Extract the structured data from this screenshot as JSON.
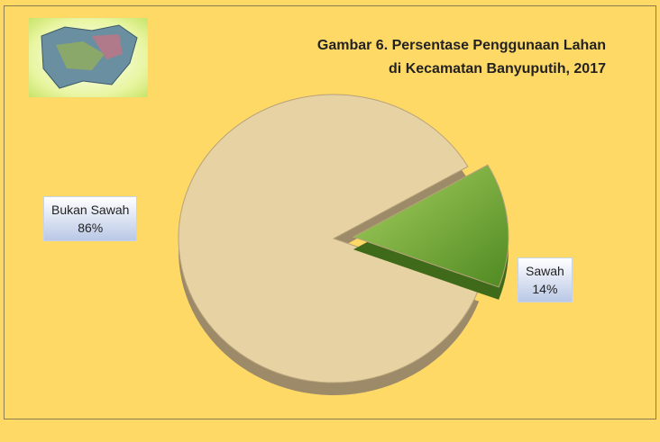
{
  "chart_data": {
    "type": "pie",
    "title": "Gambar 6. Persentase Penggunaan Lahan\ndi Kecamatan Banyuputih, 2017",
    "categories": [
      "Bukan Sawah",
      "Sawah"
    ],
    "values": [
      86,
      14
    ],
    "value_labels": [
      "86%",
      "14%"
    ],
    "colors": [
      "#e6d2a2",
      "#7fae3a"
    ]
  }
}
